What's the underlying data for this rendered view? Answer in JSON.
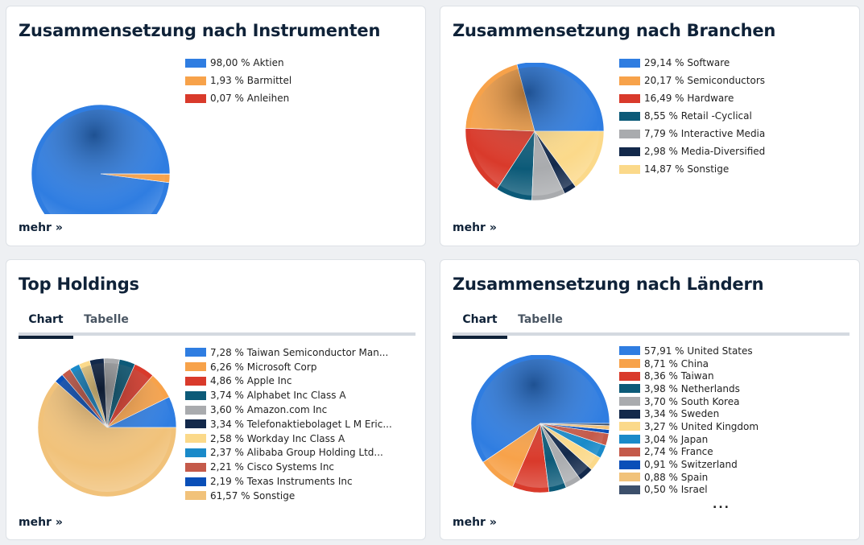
{
  "more_label": "mehr »",
  "cards": {
    "instruments": {
      "title": "Zusammensetzung nach Instrumenten"
    },
    "sectors": {
      "title": "Zusammensetzung nach Branchen"
    },
    "holdings": {
      "title": "Top Holdings",
      "tabs": {
        "chart": "Chart",
        "table": "Tabelle"
      }
    },
    "countries": {
      "title": "Zusammensetzung nach Ländern",
      "tabs": {
        "chart": "Chart",
        "table": "Tabelle"
      },
      "ellipsis": "..."
    }
  },
  "chart_data": [
    {
      "id": "instruments",
      "type": "pie",
      "title": "Zusammensetzung nach Instrumenten",
      "legend_position": "right",
      "slices": [
        {
          "label": "98,00 % Aktien",
          "value": 98.0,
          "color": "#2f7de1"
        },
        {
          "label": "1,93 % Barmittel",
          "value": 1.93,
          "color": "#f7a24a"
        },
        {
          "label": "0,07 % Anleihen",
          "value": 0.07,
          "color": "#d93a2b"
        }
      ]
    },
    {
      "id": "sectors",
      "type": "pie",
      "title": "Zusammensetzung nach Branchen",
      "legend_position": "right",
      "slices": [
        {
          "label": "29,14 % Software",
          "value": 29.14,
          "color": "#2f7de1"
        },
        {
          "label": "20,17 % Semiconductors",
          "value": 20.17,
          "color": "#f7a24a"
        },
        {
          "label": "16,49 % Hardware",
          "value": 16.49,
          "color": "#d93a2b"
        },
        {
          "label": "8,55 % Retail -Cyclical",
          "value": 8.55,
          "color": "#0c5a78"
        },
        {
          "label": "7,79 % Interactive Media",
          "value": 7.79,
          "color": "#a9abae"
        },
        {
          "label": "2,98 % Media-Diversified",
          "value": 2.98,
          "color": "#13294b"
        },
        {
          "label": "14,87 % Sonstige",
          "value": 14.87,
          "color": "#fbd98a"
        }
      ]
    },
    {
      "id": "holdings",
      "type": "pie",
      "title": "Top Holdings",
      "legend_position": "right",
      "slices": [
        {
          "label": "7,28 % Taiwan Semiconductor Man...",
          "value": 7.28,
          "color": "#2f7de1"
        },
        {
          "label": "6,26 % Microsoft Corp",
          "value": 6.26,
          "color": "#f7a24a"
        },
        {
          "label": "4,86 % Apple Inc",
          "value": 4.86,
          "color": "#d93a2b"
        },
        {
          "label": "3,74 % Alphabet Inc Class A",
          "value": 3.74,
          "color": "#0c5a78"
        },
        {
          "label": "3,60 % Amazon.com Inc",
          "value": 3.6,
          "color": "#a9abae"
        },
        {
          "label": "3,34 % Telefonaktiebolaget L M Eric...",
          "value": 3.34,
          "color": "#13294b"
        },
        {
          "label": "2,58 % Workday Inc Class A",
          "value": 2.58,
          "color": "#fbd98a"
        },
        {
          "label": "2,37 % Alibaba Group Holding Ltd...",
          "value": 2.37,
          "color": "#1a8ac9"
        },
        {
          "label": "2,21 % Cisco Systems Inc",
          "value": 2.21,
          "color": "#c45a4a"
        },
        {
          "label": "2,19 % Texas Instruments Inc",
          "value": 2.19,
          "color": "#0a4fb8"
        },
        {
          "label": "61,57 % Sonstige",
          "value": 61.57,
          "color": "#f1c27a"
        }
      ]
    },
    {
      "id": "countries",
      "type": "pie",
      "title": "Zusammensetzung nach Ländern",
      "legend_position": "right",
      "slices": [
        {
          "label": "57,91 % United States",
          "value": 57.91,
          "color": "#2f7de1"
        },
        {
          "label": "8,71 % China",
          "value": 8.71,
          "color": "#f7a24a"
        },
        {
          "label": "8,36 % Taiwan",
          "value": 8.36,
          "color": "#d93a2b"
        },
        {
          "label": "3,98 % Netherlands",
          "value": 3.98,
          "color": "#0c5a78"
        },
        {
          "label": "3,70 % South Korea",
          "value": 3.7,
          "color": "#a9abae"
        },
        {
          "label": "3,34 % Sweden",
          "value": 3.34,
          "color": "#13294b"
        },
        {
          "label": "3,27 % United Kingdom",
          "value": 3.27,
          "color": "#fbd98a"
        },
        {
          "label": "3,04 % Japan",
          "value": 3.04,
          "color": "#1a8ac9"
        },
        {
          "label": "2,74 % France",
          "value": 2.74,
          "color": "#c45a4a"
        },
        {
          "label": "0,91 % Switzerland",
          "value": 0.91,
          "color": "#0a4fb8"
        },
        {
          "label": "0,88 % Spain",
          "value": 0.88,
          "color": "#f1c27a"
        },
        {
          "label": "0,50 % Israel",
          "value": 0.5,
          "color": "#3c4f6b"
        }
      ]
    }
  ]
}
